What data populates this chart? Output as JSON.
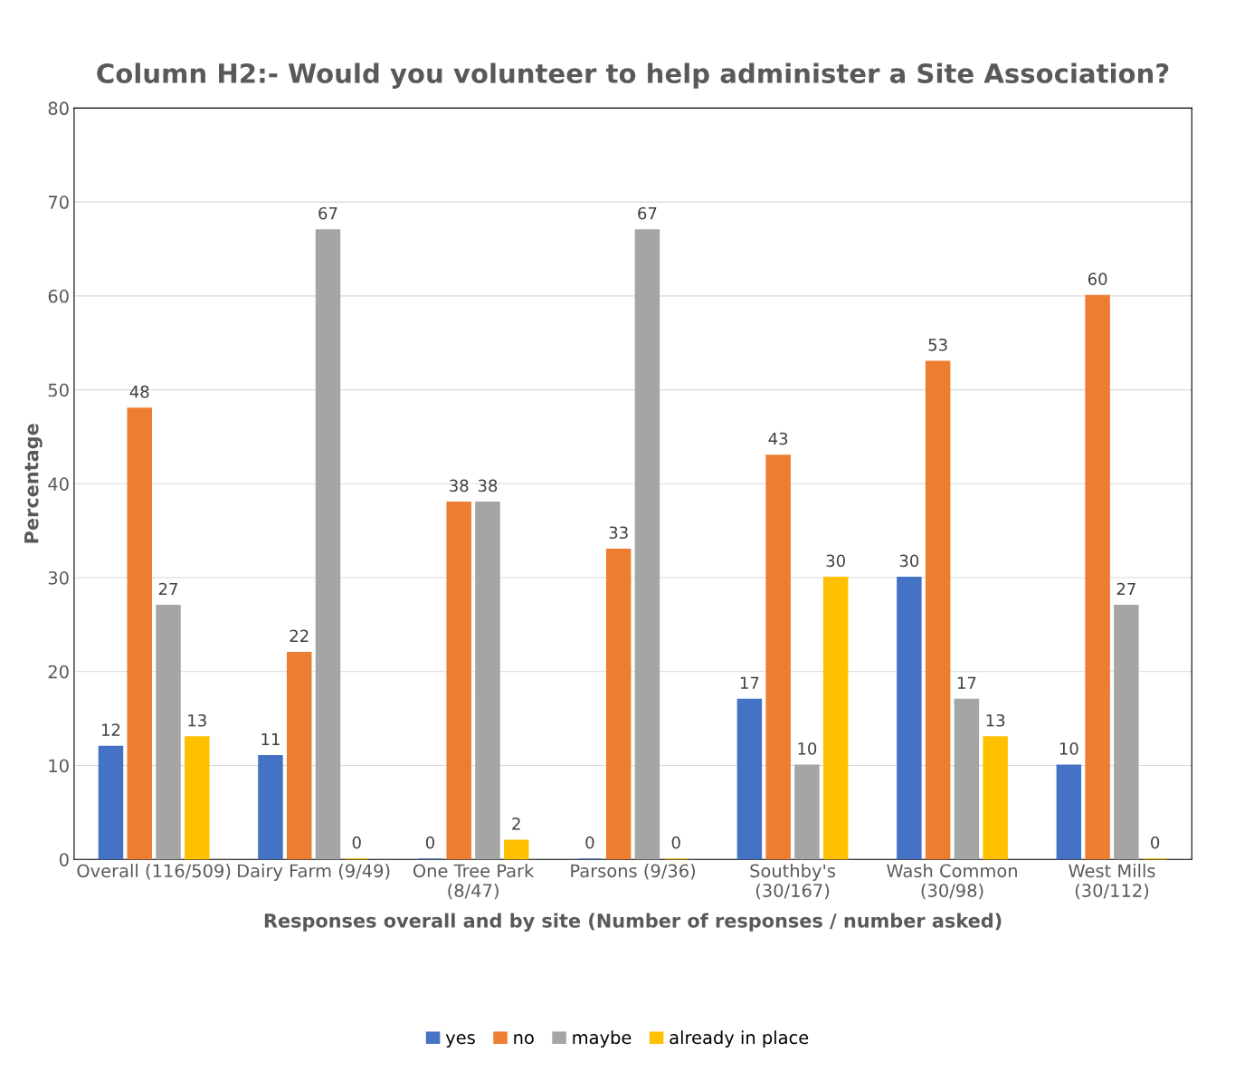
{
  "chart_data": {
    "type": "bar",
    "title": "Column H2:- Would you volunteer to help administer a Site Association?",
    "xlabel": "Responses overall and by site (Number of responses / number asked)",
    "ylabel": "Percentage",
    "categories": [
      "Overall (116/509)",
      "Dairy Farm (9/49)",
      "One Tree Park\n(8/47)",
      "Parsons (9/36)",
      "Southby's\n(30/167)",
      "Wash Common\n(30/98)",
      "West Mills\n(30/112)"
    ],
    "series": [
      {
        "name": "yes",
        "color": "#4472c4",
        "values": [
          12,
          11,
          0,
          0,
          17,
          30,
          10
        ]
      },
      {
        "name": "no",
        "color": "#ed7d31",
        "values": [
          48,
          22,
          38,
          33,
          43,
          53,
          60
        ]
      },
      {
        "name": "maybe",
        "color": "#a5a5a5",
        "values": [
          27,
          67,
          38,
          67,
          10,
          17,
          27
        ]
      },
      {
        "name": "already in place",
        "color": "#ffc000",
        "values": [
          13,
          0,
          2,
          0,
          30,
          13,
          0
        ]
      }
    ],
    "ylim": [
      0,
      80
    ],
    "yticks": [
      0,
      10,
      20,
      30,
      40,
      50,
      60,
      70,
      80
    ],
    "grid": "y",
    "legend": "bottom",
    "data_labels": true
  }
}
